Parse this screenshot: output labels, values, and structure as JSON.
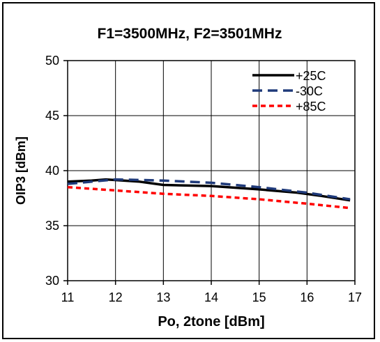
{
  "chart_data": {
    "type": "line",
    "title": "F1=3500MHz, F2=3501MHz",
    "xlabel": "Po, 2tone [dBm]",
    "ylabel": "OIP3 [dBm]",
    "xlim": [
      11,
      17
    ],
    "ylim": [
      30,
      50
    ],
    "x_ticks": [
      11,
      12,
      13,
      14,
      15,
      16,
      17
    ],
    "y_ticks": [
      30,
      35,
      40,
      45,
      50
    ],
    "grid": true,
    "legend_position": "top-right",
    "series": [
      {
        "name": "+25C",
        "color": "#000000",
        "dash": "solid",
        "x": [
          11,
          11.5,
          11.8,
          12.5,
          13,
          14,
          15,
          15.8,
          16.3,
          16.9
        ],
        "y": [
          39.0,
          39.1,
          39.2,
          39.0,
          38.7,
          38.6,
          38.3,
          38.0,
          37.7,
          37.3
        ]
      },
      {
        "name": "-30C",
        "color": "#1f3a7a",
        "dash": "long-dash",
        "x": [
          11,
          11.5,
          12,
          13,
          14,
          15,
          16,
          16.9
        ],
        "y": [
          38.8,
          39.0,
          39.2,
          39.1,
          38.9,
          38.5,
          38.0,
          37.4
        ]
      },
      {
        "name": "+85C",
        "color": "#ff0000",
        "dash": "short-dash",
        "x": [
          11,
          12,
          13,
          14,
          15,
          16,
          16.9
        ],
        "y": [
          38.5,
          38.2,
          37.9,
          37.7,
          37.4,
          37.0,
          36.6
        ]
      }
    ]
  }
}
